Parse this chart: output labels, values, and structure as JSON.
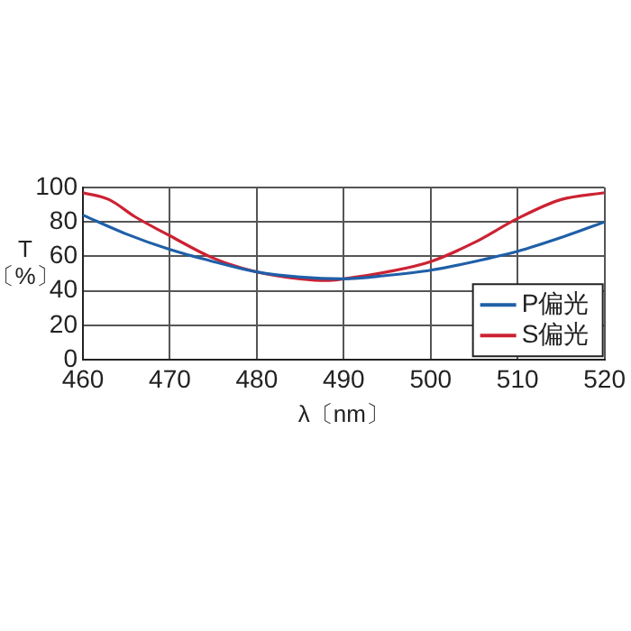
{
  "chart_data": {
    "type": "line",
    "xlabel": "λ〔nm〕",
    "ylabel": "T 〔%〕",
    "xlim": [
      460,
      520
    ],
    "xticks": [
      460,
      470,
      480,
      490,
      500,
      510,
      520
    ],
    "ylim": [
      0,
      100
    ],
    "yticks": [
      0,
      20,
      40,
      60,
      80,
      100
    ],
    "grid": true,
    "legend": "bottom right",
    "marker": "none",
    "line_style": "solid",
    "series": [
      {
        "name": "P偏光",
        "color": "#1f5fa8",
        "x": [
          460,
          465,
          470,
          475,
          480,
          485,
          490,
          495,
          500,
          505,
          510,
          515,
          520
        ],
        "values": [
          84,
          73,
          64,
          57,
          51,
          48,
          47,
          49,
          52,
          57,
          63,
          71,
          80
        ]
      },
      {
        "name": "S偏光",
        "color": "#cc2233",
        "x": [
          460,
          463,
          466,
          470,
          475,
          480,
          485,
          488,
          490,
          495,
          500,
          505,
          510,
          515,
          520
        ],
        "values": [
          97,
          93,
          83,
          72,
          59,
          51,
          47,
          46,
          47,
          51,
          57,
          68,
          82,
          93,
          97
        ]
      }
    ]
  }
}
